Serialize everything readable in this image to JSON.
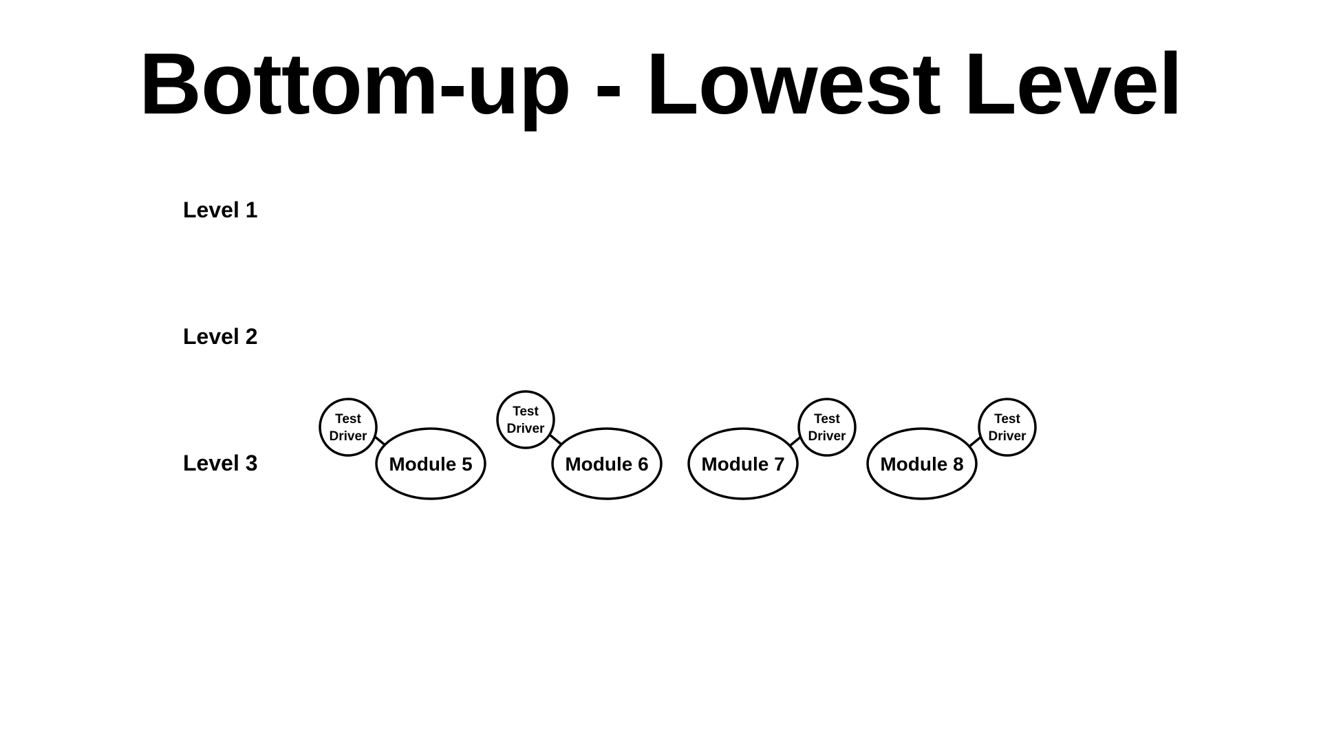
{
  "title": "Bottom-up - Lowest Level",
  "levels": [
    {
      "label": "Level 1"
    },
    {
      "label": "Level 2"
    },
    {
      "label": "Level 3"
    }
  ],
  "modules": [
    {
      "label": "Module 5",
      "driver": {
        "line1": "Test",
        "line2": "Driver"
      },
      "driver_side": "left"
    },
    {
      "label": "Module 6",
      "driver": {
        "line1": "Test",
        "line2": "Driver"
      },
      "driver_side": "left"
    },
    {
      "label": "Module 7",
      "driver": {
        "line1": "Test",
        "line2": "Driver"
      },
      "driver_side": "right"
    },
    {
      "label": "Module 8",
      "driver": {
        "line1": "Test",
        "line2": "Driver"
      },
      "driver_side": "right"
    }
  ]
}
